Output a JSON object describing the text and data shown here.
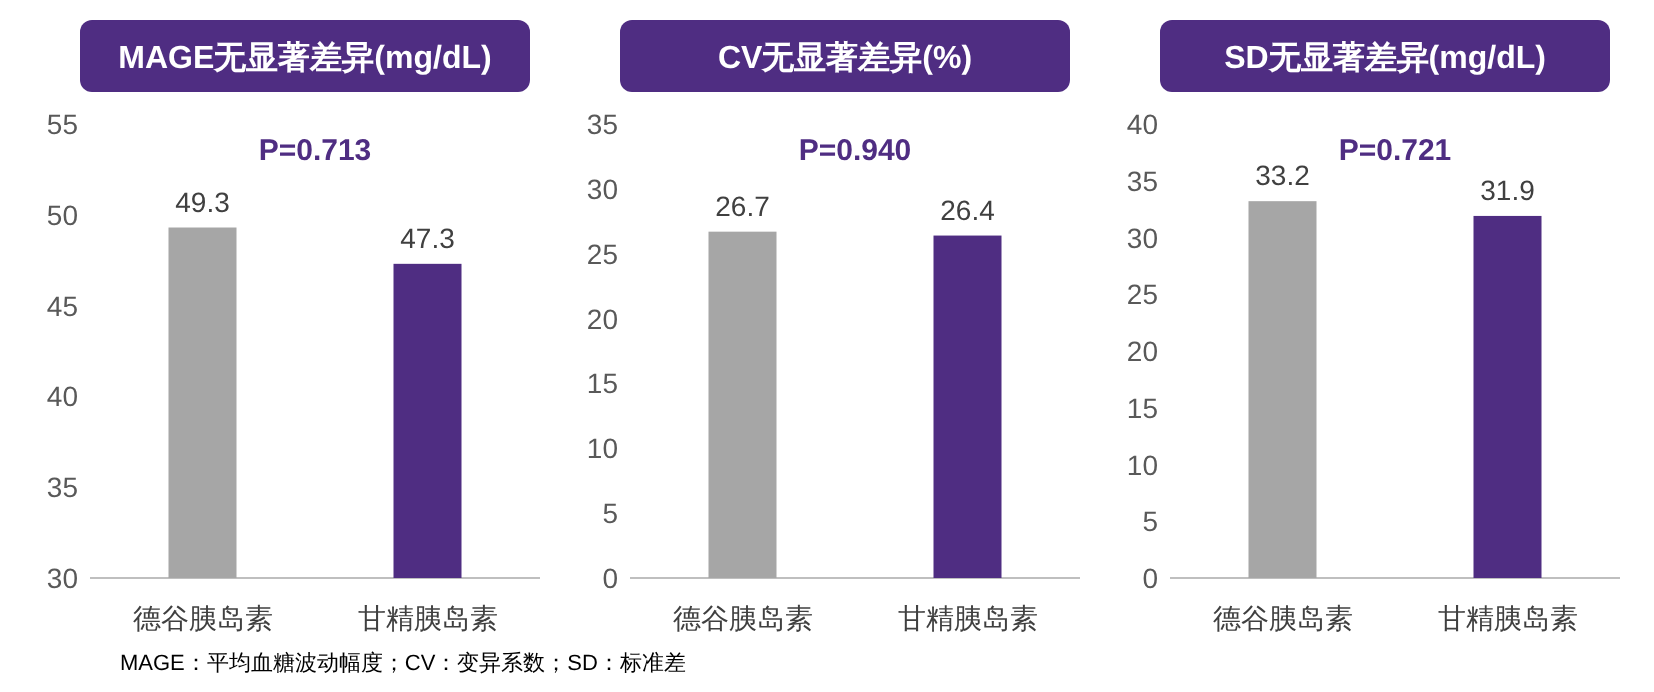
{
  "chart_data": [
    {
      "type": "bar",
      "title": "MAGE无显著差异(mg/dL)",
      "categories": [
        "德谷胰岛素",
        "甘精胰岛素"
      ],
      "values": [
        49.3,
        47.3
      ],
      "colors": [
        "#a6a6a6",
        "#4f2d82"
      ],
      "ylim": [
        30,
        55
      ],
      "yticks": [
        30,
        35,
        40,
        45,
        50,
        55
      ],
      "data_labels": true,
      "grid": false,
      "annotations": [
        "P=0.713",
        "MAGE：平均血糖波动幅度；CV：变异系数；SD：标准差"
      ]
    },
    {
      "type": "bar",
      "title": "CV无显著差异(%)",
      "categories": [
        "德谷胰岛素",
        "甘精胰岛素"
      ],
      "values": [
        26.7,
        26.4
      ],
      "colors": [
        "#a6a6a6",
        "#4f2d82"
      ],
      "ylim": [
        0,
        35
      ],
      "yticks": [
        0,
        5,
        10,
        15,
        20,
        25,
        30,
        35
      ],
      "data_labels": true,
      "grid": false,
      "annotations": [
        "P=0.940"
      ]
    },
    {
      "type": "bar",
      "title": "SD无显著差异(mg/dL)",
      "categories": [
        "德谷胰岛素",
        "甘精胰岛素"
      ],
      "values": [
        33.2,
        31.9
      ],
      "colors": [
        "#a6a6a6",
        "#4f2d82"
      ],
      "ylim": [
        0,
        40
      ],
      "yticks": [
        0,
        5,
        10,
        15,
        20,
        25,
        30,
        35,
        40
      ],
      "data_labels": true,
      "grid": false,
      "annotations": [
        "P=0.721"
      ]
    }
  ]
}
